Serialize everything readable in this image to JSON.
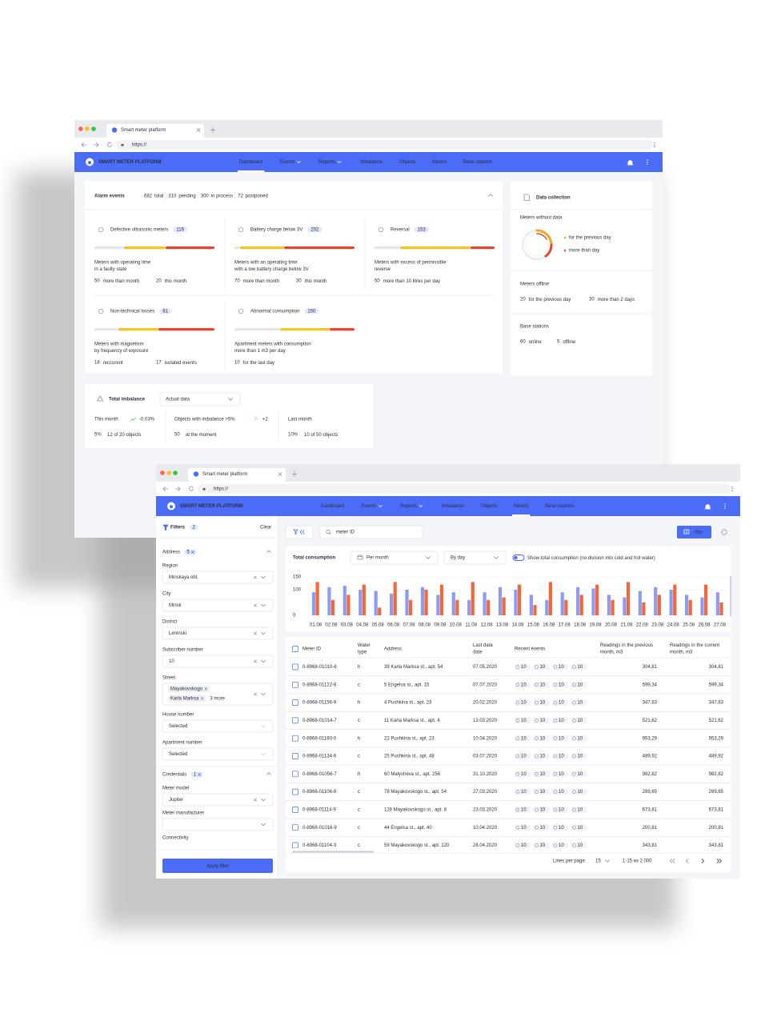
{
  "browser": {
    "tab": "Smart meter platform",
    "url": "https://"
  },
  "header": {
    "brand": "SMART METER PLATFORM",
    "nav": [
      "Dashboard",
      "Events",
      "Reports",
      "Imbalance",
      "Objects",
      "Meters",
      "Base stations"
    ]
  },
  "dashboard": {
    "alarm": {
      "title": "Alarm events",
      "stats": [
        {
          "value": 682,
          "label": "total"
        },
        {
          "value": 310,
          "label": "pending"
        },
        {
          "value": 300,
          "label": "in process"
        },
        {
          "value": 72,
          "label": "postponed"
        }
      ]
    },
    "cards": [
      {
        "title": "Defective ultrasonic meters",
        "count": 116,
        "description": [
          "Meters with operating time",
          "in a faulty state"
        ],
        "stats": [
          {
            "value": 50,
            "label": "more than month"
          },
          {
            "value": 20,
            "label": "this month"
          }
        ]
      },
      {
        "title": "Battery charge below 3V",
        "count": 202,
        "description": [
          "Meters with an operating time",
          "with a low battery charge below 3V"
        ],
        "stats": [
          {
            "value": 70,
            "label": "more than month"
          },
          {
            "value": 30,
            "label": "this month"
          }
        ]
      },
      {
        "title": "Reversal",
        "count": 153,
        "description": [
          "Meters with excess of permissible",
          "reverse"
        ],
        "stats": [
          {
            "value": 50,
            "label": "more than 10 litres per day"
          }
        ]
      },
      {
        "title": "Non-technical losses",
        "count": 61,
        "description": [
          "Meters with magnetism",
          "by frequency of exposure"
        ],
        "stats": [
          {
            "value": 18,
            "label": "reccurent"
          },
          {
            "value": 17,
            "label": "isolated events"
          }
        ]
      },
      {
        "title": "Abnormal consumption",
        "count": 150,
        "description": [
          "Apartment meters with consumption",
          "more than 1 m3 per day"
        ],
        "stats": [
          {
            "value": 10,
            "label": "for the last day"
          }
        ]
      }
    ],
    "data_collection": {
      "title": "Data collection",
      "without_data": {
        "title": "Meters without data",
        "legend": [
          "for the previous day",
          "more than day"
        ]
      },
      "offline": {
        "title": "Meters offline",
        "stats": [
          {
            "value": 20,
            "label": "for the previous day"
          },
          {
            "value": 30,
            "label": "more than 2 days"
          }
        ]
      },
      "base_stations": {
        "title": "Base stations",
        "stats": [
          {
            "value": 60,
            "label": "online"
          },
          {
            "value": 5,
            "label": "offline"
          }
        ]
      }
    },
    "imbalance": {
      "title": "Total imbalance",
      "select": "Actual data",
      "this_month": {
        "title": "This month",
        "trend": "-0.03%",
        "value": "5%",
        "note": "12 of 20 objects"
      },
      "objects": {
        "title": "Objects with imbalance >5%",
        "trend": "+2",
        "value": 50,
        "note": "at the moment"
      },
      "last_month": {
        "title": "Last month",
        "value": "10%",
        "note": "10 of 50 objects"
      }
    }
  },
  "meters": {
    "filters": {
      "title": "Filters",
      "count": 2,
      "clear": "Clear",
      "address": {
        "title": "Address",
        "count": 5,
        "fields": [
          {
            "label": "Region",
            "value": "Minskaya obl."
          },
          {
            "label": "City",
            "value": "Minsk"
          },
          {
            "label": "District",
            "value": "Leninski"
          },
          {
            "label": "Subscriber number",
            "value": "10"
          },
          {
            "label": "Street",
            "chips": [
              "Mayakovskogo",
              "Karla Marksa"
            ],
            "more": "3 more"
          },
          {
            "label": "House number",
            "value": "Selected"
          },
          {
            "label": "Apartment number",
            "value": "Selected"
          }
        ]
      },
      "credentials": {
        "title": "Credentials",
        "count": 1,
        "fields": [
          {
            "label": "Meter model",
            "value": "Jupiter"
          },
          {
            "label": "Meter manufacturer"
          },
          {
            "label": "Connectivity"
          }
        ]
      },
      "apply": "Apply filter"
    },
    "search": "meter ID",
    "export": ".xlsx",
    "consumption": {
      "title": "Total consumption",
      "period": "Per month",
      "grouping": "By day",
      "toggle": [
        "Show total consumption (no division into ",
        "cold",
        " and ",
        "hot",
        " water)"
      ]
    },
    "table": {
      "columns": [
        [
          "Meter ID"
        ],
        [
          "Water",
          "type"
        ],
        [
          "Address"
        ],
        [
          "Last data",
          "date"
        ],
        [
          "Recent events"
        ],
        [
          "Readings in the previous",
          "month, m3"
        ],
        [
          "Readings in the current",
          "month, m3"
        ]
      ],
      "rows": [
        {
          "id": "0-8968-01010-6",
          "type": "h",
          "address": "39 Karla Marksa st., apt. 54",
          "date": "07.05.2020",
          "events": [
            10,
            10,
            10,
            10
          ],
          "previous": "304,81",
          "current": "304,81"
        },
        {
          "id": "0-8968-01122-8",
          "type": "c",
          "address": "5 Engelsa st., apt. 15",
          "date": "07.07.2020",
          "events": [
            10,
            10,
            10,
            10
          ],
          "previous": "599,34",
          "current": "599,34"
        },
        {
          "id": "0-8968-01156-9",
          "type": "h",
          "address": "4 Pushkina st., apt. 23",
          "date": "20.02.2020",
          "events": [
            10,
            10,
            10,
            10
          ],
          "previous": "347,83",
          "current": "347,83"
        },
        {
          "id": "0-8968-01014-7",
          "type": "c",
          "address": "11 Karla Marksa st., apt. 4",
          "date": "13.03.2020",
          "events": [
            10,
            10,
            10,
            10
          ],
          "previous": "521,62",
          "current": "521,62"
        },
        {
          "id": "0-8968-01160-0",
          "type": "h",
          "address": "22 Pushkina st., apt. 23",
          "date": "10.04.2020",
          "events": [
            10,
            10,
            10,
            10
          ],
          "previous": "953,29",
          "current": "953,29"
        },
        {
          "id": "0-8968-01134-6",
          "type": "c",
          "address": "25 Pushkina st., apt. 48",
          "date": "03.07.2020",
          "events": [
            10,
            10,
            10,
            10
          ],
          "previous": "489,92",
          "current": "489,92"
        },
        {
          "id": "0-8968-01056-7",
          "type": "h",
          "address": "60 Malysheva st., apt. 256",
          "date": "31.10.2020",
          "events": [
            10,
            10,
            10,
            10
          ],
          "previous": "982,82",
          "current": "982,82"
        },
        {
          "id": "0-8968-01106-8",
          "type": "c",
          "address": "78 Mayakovskogo st., apt. 54",
          "date": "27.03.2020",
          "events": [
            10,
            10,
            10,
            10
          ],
          "previous": "289,65",
          "current": "289,65"
        },
        {
          "id": "0-8968-01114-9",
          "type": "c",
          "address": "128 Mayakovskogo st., apt. 8",
          "date": "23.03.2020",
          "events": [
            10,
            10,
            10,
            10
          ],
          "previous": "673,81",
          "current": "673,81"
        },
        {
          "id": "0-8968-01016-9",
          "type": "c",
          "address": "44 Engelsa st., apt. 40",
          "date": "10.04.2020",
          "events": [
            10,
            10,
            10,
            10
          ],
          "previous": "200,81",
          "current": "200,81"
        },
        {
          "id": "0-8968-01104-3",
          "type": "c",
          "address": "59 Mayakovskogo st., apt. 120",
          "date": "28.04.2020",
          "events": [
            10,
            10,
            10,
            10
          ],
          "previous": "343,81",
          "current": "343,81"
        }
      ]
    },
    "pagination": {
      "label": "Lines per page:",
      "per_page": 15,
      "range": "1-15 из 2 000"
    }
  },
  "chart_data": {
    "type": "bar",
    "categories": [
      "01.08",
      "02.08",
      "03.08",
      "04.08",
      "05.08",
      "06.08",
      "07.08",
      "08.08",
      "09.08",
      "10.08",
      "11.08",
      "12.08",
      "13.08",
      "14.08",
      "15.08",
      "16.08",
      "17.08",
      "18.08",
      "19.08",
      "20.08",
      "21.08",
      "22.08",
      "23.08",
      "24.08",
      "25.08",
      "26.08",
      "27.08"
    ],
    "series": [
      {
        "color": "#8e9bf4",
        "values": [
          90,
          110,
          115,
          100,
          95,
          85,
          100,
          110,
          80,
          90,
          60,
          90,
          110,
          100,
          80,
          60,
          90,
          110,
          105,
          80,
          70,
          95,
          110,
          100,
          80,
          70,
          90
        ]
      },
      {
        "color": "#f2683a",
        "values": [
          130,
          60,
          80,
          120,
          30,
          130,
          60,
          100,
          120,
          60,
          130,
          60,
          70,
          120,
          40,
          130,
          60,
          80,
          120,
          60,
          130,
          50,
          80,
          120,
          60,
          120,
          50
        ]
      }
    ],
    "ylim": [
      0,
      150
    ],
    "yticks": [
      0,
      100,
      150
    ],
    "grid": true
  }
}
